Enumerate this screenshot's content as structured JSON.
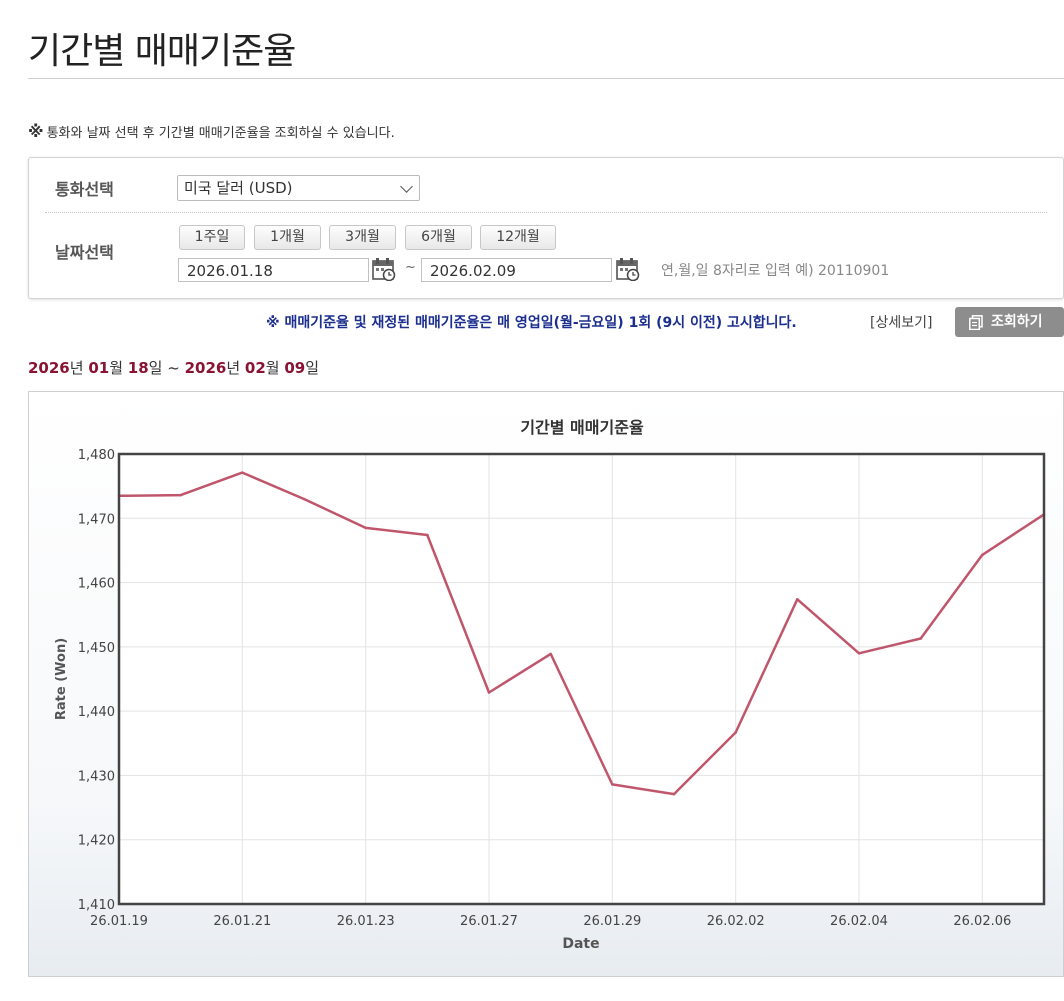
{
  "page": {
    "title": "기간별 매매기준율",
    "notice_mark": "※",
    "notice_text": "통화와 날짜 선택 후 기간별 매매기준율을 조회하실 수 있습니다."
  },
  "search": {
    "currency_label": "통화선택",
    "currency_value": "미국 달러 (USD)",
    "date_label": "날짜선택",
    "period_buttons": [
      "1주일",
      "1개월",
      "3개월",
      "6개월",
      "12개월"
    ],
    "start_date": "2026.01.18",
    "tilde": "~",
    "end_date": "2026.02.09",
    "date_hint": "연,월,일 8자리로 입력 예) 20110901"
  },
  "announcement": {
    "text": "※ 매매기준율 및 재정된 매매기준율은 매 영업일(월-금요일) 1회 (9시 이전) 고시합니다.",
    "detail_link": "[상세보기]",
    "search_button": "조회하기"
  },
  "range": {
    "start_year": "2026",
    "y": "년 ",
    "start_month": "01",
    "m": "월 ",
    "start_day": "18",
    "d": "일",
    "sep": " ~ ",
    "end_year": "2026",
    "end_month": "02",
    "end_day": "09"
  },
  "colors": {
    "line": "#c0566b",
    "highlight": "#8a1333",
    "announcement": "#1c2f8f"
  },
  "chart_data": {
    "type": "line",
    "title": "기간별 매매기준율",
    "xlabel": "Date",
    "ylabel": "Rate (Won)",
    "ylim": [
      1410,
      1480
    ],
    "yticks": [
      1410,
      1420,
      1430,
      1440,
      1450,
      1460,
      1470,
      1480
    ],
    "ytick_labels": [
      "1,410",
      "1,420",
      "1,430",
      "1,440",
      "1,450",
      "1,460",
      "1,470",
      "1,480"
    ],
    "xtick_labels": [
      "26.01.19",
      "26.01.21",
      "26.01.23",
      "26.01.27",
      "26.01.29",
      "26.02.02",
      "26.02.04",
      "26.02.06"
    ],
    "xtick_index": [
      0,
      2,
      4,
      6,
      8,
      10,
      12,
      14
    ],
    "x": [
      "26.01.19",
      "26.01.20",
      "26.01.21",
      "26.01.22",
      "26.01.23",
      "26.01.26",
      "26.01.27",
      "26.01.28",
      "26.01.29",
      "26.01.30",
      "26.02.02",
      "26.02.03",
      "26.02.04",
      "26.02.05",
      "26.02.06",
      "26.02.09"
    ],
    "series": [
      {
        "values": [
          1473.5,
          1473.6,
          1477.1,
          1473.0,
          1468.5,
          1467.4,
          1442.9,
          1448.9,
          1428.6,
          1427.1,
          1436.7,
          1457.4,
          1449.0,
          1451.3,
          1464.3,
          1470.6
        ]
      }
    ],
    "grid": true
  }
}
